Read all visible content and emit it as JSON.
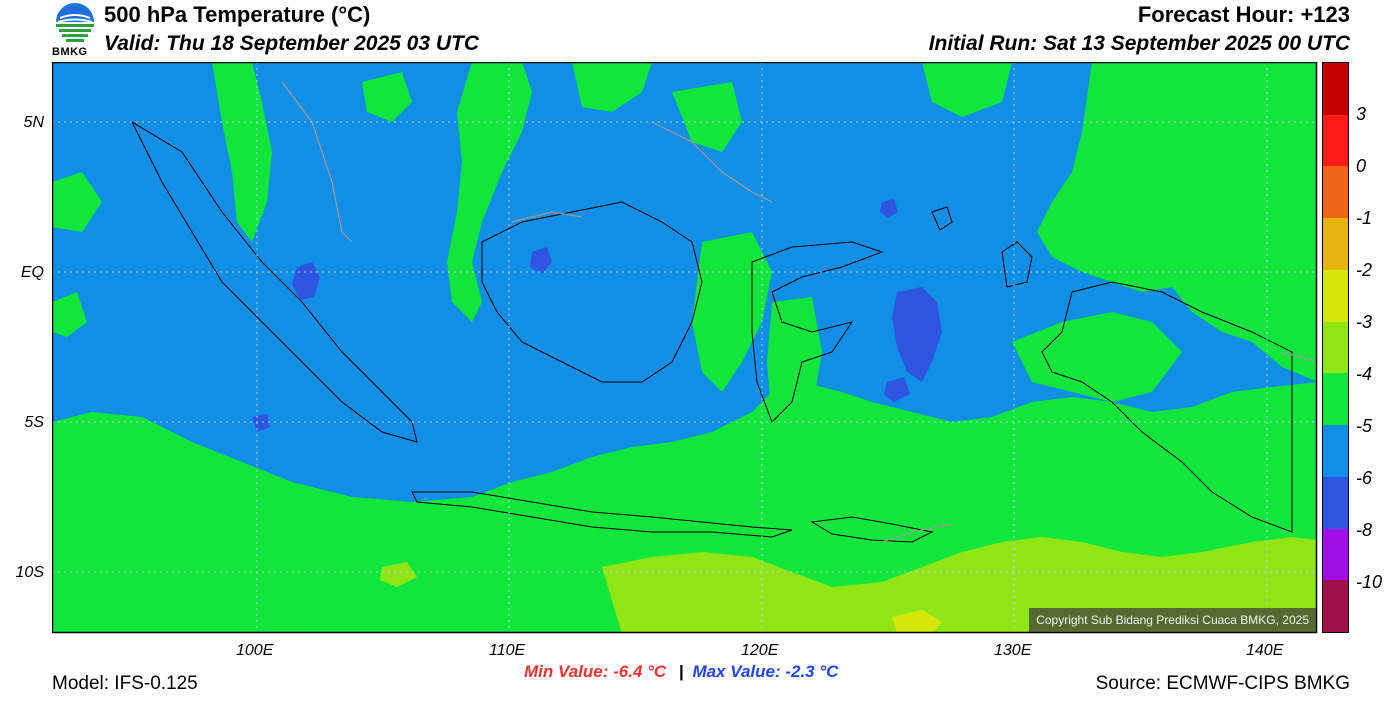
{
  "header": {
    "logo_text": "BMKG",
    "title": "500 hPa Temperature (°C)",
    "valid": "Valid: Thu 18 September 2025 03 UTC",
    "forecast_hour": "Forecast Hour: +123",
    "initial_run": "Initial Run: Sat 13 September 2025 00 UTC"
  },
  "map": {
    "lat_labels": [
      "5N",
      "EQ",
      "5S",
      "10S"
    ],
    "lon_labels": [
      "100E",
      "110E",
      "120E",
      "130E",
      "140E"
    ],
    "copyright": "Copyright Sub Bidang Prediksi Cuaca BMKG, 2025"
  },
  "colorbar": {
    "labels": [
      "3",
      "0",
      "-1",
      "-2",
      "-3",
      "-4",
      "-5",
      "-6",
      "-8",
      "-10"
    ],
    "colors": [
      "#c40000",
      "#ff1a1a",
      "#f06414",
      "#e6b40e",
      "#d4e60a",
      "#90e614",
      "#10e63c",
      "#118ee6",
      "#2d55e0",
      "#a010e6",
      "#a0104a"
    ]
  },
  "stats": {
    "min_label": "Min Value: -6.4 °C",
    "separator": "|",
    "max_label": "Max Value: -2.3 °C"
  },
  "footer": {
    "model": "Model: IFS-0.125",
    "source": "Source: ECMWF-CIPS BMKG"
  },
  "legend_colors": {
    "blue_band": "#118ee6",
    "green_band": "#10e63c",
    "yellowgreen_band": "#90e614",
    "darkblue_band": "#2d55e0",
    "yellow_band": "#d4e60a",
    "min_text_color": "#ee3333",
    "max_text_color": "#2244ee"
  }
}
